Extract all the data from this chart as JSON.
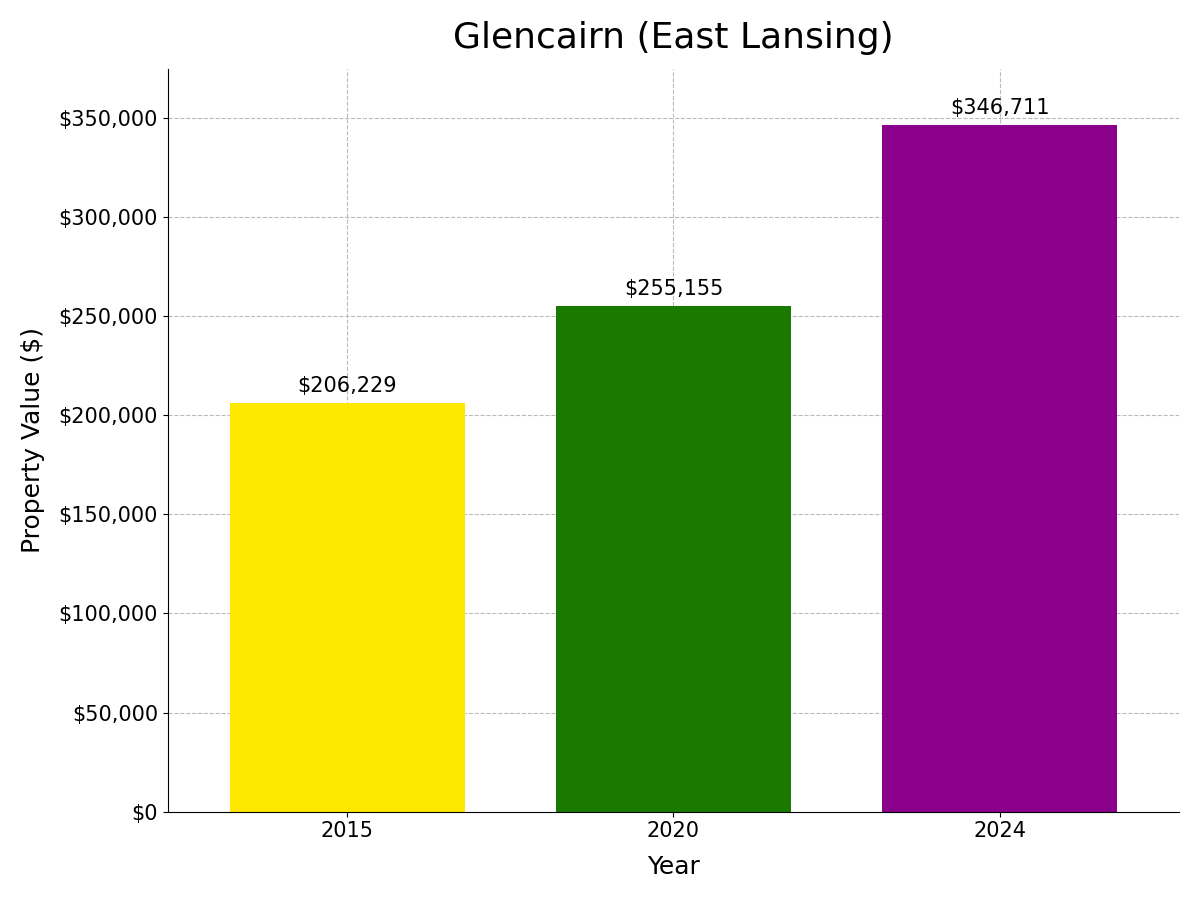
{
  "title": "Glencairn (East Lansing)",
  "xlabel": "Year",
  "ylabel": "Property Value ($)",
  "categories": [
    "2015",
    "2020",
    "2024"
  ],
  "values": [
    206229,
    255155,
    346711
  ],
  "bar_colors": [
    "#FFE800",
    "#1A7A00",
    "#8B008B"
  ],
  "bar_labels": [
    "$206,229",
    "$255,155",
    "$346,711"
  ],
  "ylim": [
    0,
    375000
  ],
  "yticks": [
    0,
    50000,
    100000,
    150000,
    200000,
    250000,
    300000,
    350000
  ],
  "ytick_labels": [
    "$0",
    "$50,000",
    "$100,000",
    "$150,000",
    "$200,000",
    "$250,000",
    "$300,000",
    "$350,000"
  ],
  "title_fontsize": 26,
  "axis_label_fontsize": 18,
  "tick_fontsize": 15,
  "bar_label_fontsize": 15,
  "background_color": "#ffffff",
  "grid_color": "#aaaaaa",
  "bar_width": 0.72
}
